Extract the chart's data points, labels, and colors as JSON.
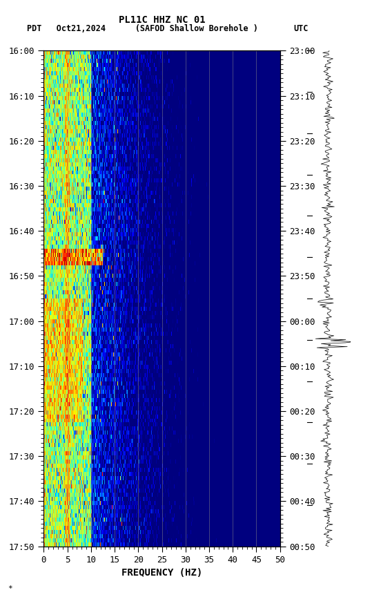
{
  "title_line1": "PL11C HHZ NC 01",
  "title_line2_left": "PDT   Oct21,2024      (SAFOD Shallow Borehole )",
  "title_line2_right": "UTC",
  "left_yticks": [
    "16:00",
    "16:10",
    "16:20",
    "16:30",
    "16:40",
    "16:50",
    "17:00",
    "17:10",
    "17:20",
    "17:30",
    "17:40",
    "17:50"
  ],
  "right_yticks": [
    "23:00",
    "23:10",
    "23:20",
    "23:30",
    "23:40",
    "23:50",
    "00:00",
    "00:10",
    "00:20",
    "00:30",
    "00:40",
    "00:50"
  ],
  "xlabel": "FREQUENCY (HZ)",
  "xticks": [
    0,
    5,
    10,
    15,
    20,
    25,
    30,
    35,
    40,
    45,
    50
  ],
  "freq_min": 0,
  "freq_max": 50,
  "time_steps": 120,
  "freq_steps": 500,
  "vlines_x": [
    5,
    10,
    15,
    20,
    25,
    30,
    35,
    40,
    45
  ],
  "vline_color": "#888888",
  "bg_color": "#000080",
  "colormap": "jet",
  "seed": 42
}
